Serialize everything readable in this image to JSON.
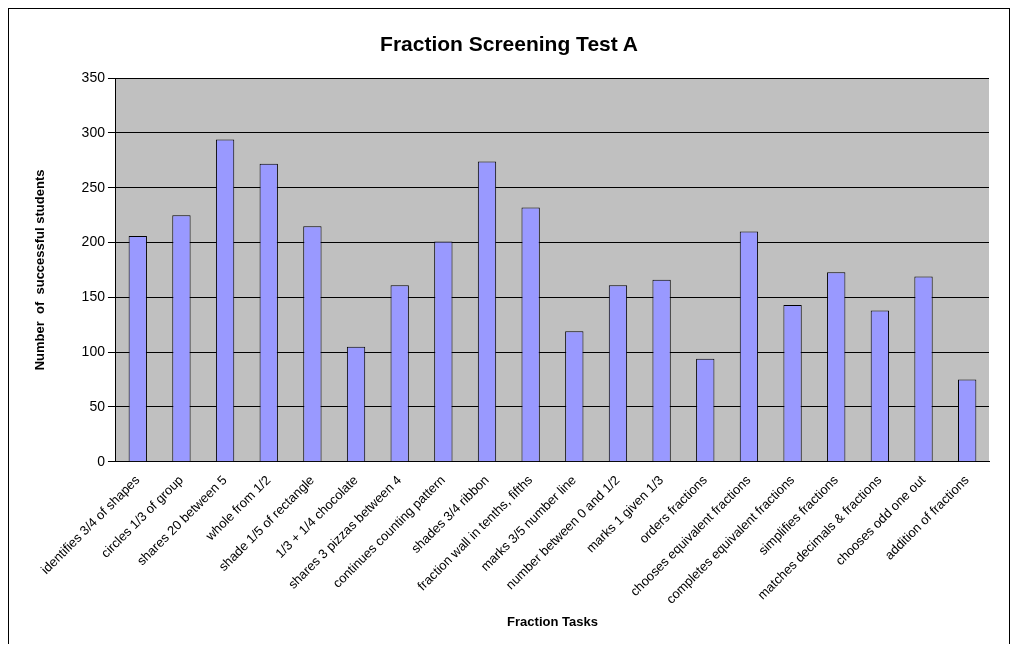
{
  "chart_data": {
    "type": "bar",
    "title": "Fraction Screening Test A",
    "xlabel": "Fraction Tasks",
    "ylabel": "Number  of  successful students",
    "categories": [
      "identifies 3/4 of shapes",
      "circles 1/3 of group",
      "shares 20 between 5",
      "whole from 1/2",
      "shade 1/5 of rectangle",
      "1/3 + 1/4 chocolate",
      "shares 3 pizzas between 4",
      "continues counting pattern",
      "shades 3/4 ribbon",
      "fraction wall in tenths, fifths",
      "marks 3/5 number line",
      "number between 0 and 1/2",
      "marks 1 given 1/3",
      "orders fractions",
      "chooses equivalent fractions",
      "completes equivalent fractions",
      "simplifies fractions",
      "matches decimals & fractions",
      "chooses odd one out",
      "addition of fractions"
    ],
    "values": [
      206,
      225,
      294,
      272,
      215,
      105,
      161,
      201,
      274,
      232,
      119,
      161,
      166,
      94,
      210,
      143,
      173,
      138,
      169,
      75
    ],
    "color": "#9999ff",
    "ylim": [
      0,
      350
    ],
    "yticks": [
      0,
      50,
      100,
      150,
      200,
      250,
      300,
      350
    ],
    "grid": "y",
    "legend": false
  }
}
